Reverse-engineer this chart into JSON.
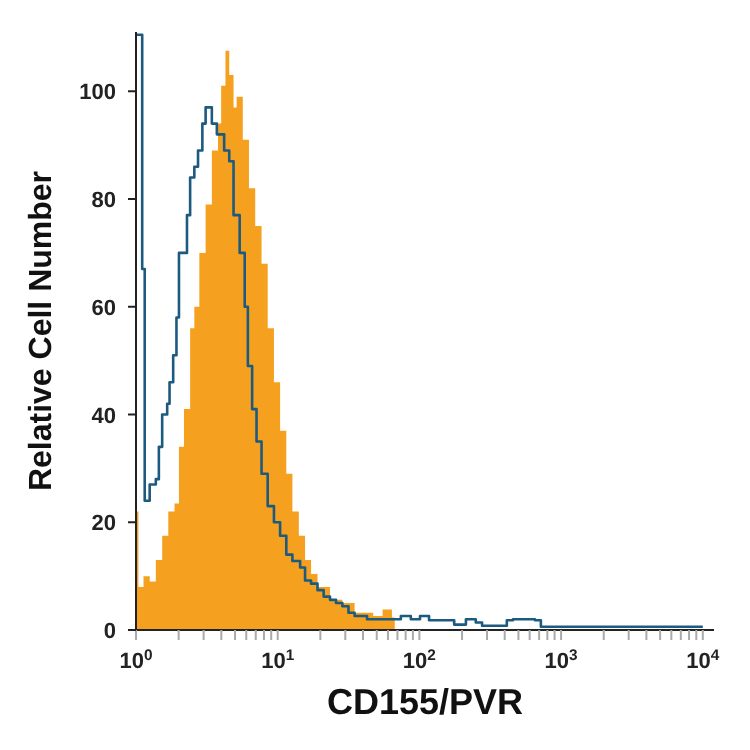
{
  "chart_data": {
    "type": "step",
    "xlabel": "CD155/PVR",
    "ylabel": "Relative Cell Number",
    "log": "x",
    "marker": "none",
    "xlim": [
      1,
      12000
    ],
    "ylim": [
      0,
      111
    ],
    "xticks": [
      {
        "value": 1,
        "label": "10$^{0}$"
      },
      {
        "value": 2,
        "label": null
      },
      {
        "value": 3,
        "label": null
      },
      {
        "value": 4,
        "label": null
      },
      {
        "value": 5,
        "label": null
      },
      {
        "value": 6,
        "label": null
      },
      {
        "value": 7,
        "label": null
      },
      {
        "value": 8,
        "label": null
      },
      {
        "value": 9,
        "label": null
      },
      {
        "value": 10,
        "label": "10$^{1}$"
      },
      {
        "value": 20,
        "label": null
      },
      {
        "value": 30,
        "label": null
      },
      {
        "value": 40,
        "label": null
      },
      {
        "value": 50,
        "label": null
      },
      {
        "value": 60,
        "label": null
      },
      {
        "value": 70,
        "label": null
      },
      {
        "value": 80,
        "label": null
      },
      {
        "value": 90,
        "label": null
      },
      {
        "value": 100,
        "label": "10$^{2}$"
      },
      {
        "value": 200,
        "label": null
      },
      {
        "value": 300,
        "label": null
      },
      {
        "value": 400,
        "label": null
      },
      {
        "value": 500,
        "label": null
      },
      {
        "value": 600,
        "label": null
      },
      {
        "value": 700,
        "label": null
      },
      {
        "value": 800,
        "label": null
      },
      {
        "value": 900,
        "label": null
      },
      {
        "value": 1000,
        "label": "10$^{3}$"
      },
      {
        "value": 2000,
        "label": null
      },
      {
        "value": 3000,
        "label": null
      },
      {
        "value": 4000,
        "label": null
      },
      {
        "value": 5000,
        "label": null
      },
      {
        "value": 6000,
        "label": null
      },
      {
        "value": 7000,
        "label": null
      },
      {
        "value": 8000,
        "label": null
      },
      {
        "value": 9000,
        "label": null
      },
      {
        "value": 10000,
        "label": "10$^{4}$"
      }
    ],
    "yticks": [
      0,
      20,
      40,
      60,
      80,
      100
    ],
    "series": [
      {
        "type": "area",
        "color": "#f5a11f",
        "x": [
          1,
          1.04,
          1.13,
          1.25,
          1.38,
          1.53,
          1.69,
          1.87,
          2.01,
          2.18,
          2.41,
          2.58,
          2.8,
          3.1,
          3.43,
          3.79,
          3.99,
          4.28,
          4.55,
          4.88,
          5.13,
          5.67,
          6.27,
          6.94,
          7.69,
          8.5,
          9.41,
          10.4,
          11.5,
          12.7,
          14.1,
          15.6,
          17.2,
          19.1,
          23.4,
          28.6,
          34.9,
          47.2,
          55,
          64,
          67
        ],
        "values": [
          22,
          8,
          10,
          9,
          13,
          17.5,
          22,
          23.5,
          34,
          41,
          56,
          60,
          70,
          79,
          89,
          94,
          101,
          107.5,
          103,
          97,
          99,
          91,
          82,
          75,
          68,
          56,
          46,
          37,
          29,
          22,
          17.5,
          13,
          10.4,
          8,
          5.6,
          5,
          3.2,
          2.6,
          3.8,
          2.3,
          0
        ]
      },
      {
        "color": "#1d5a80",
        "x": [
          1,
          1.106,
          1.152,
          1.249,
          1.38,
          1.45,
          1.53,
          1.66,
          1.725,
          1.83,
          1.93,
          2.01,
          2.18,
          2.29,
          2.41,
          2.58,
          2.74,
          2.94,
          3.1,
          3.43,
          3.72,
          4.19,
          4.55,
          4.88,
          5.39,
          5.85,
          6.16,
          6.6,
          7.09,
          7.69,
          8.5,
          9.41,
          10.4,
          11.5,
          12.7,
          14.4,
          15.6,
          17.2,
          19.1,
          21.1,
          23.4,
          25.8,
          28.6,
          31.6,
          34.9,
          42.7,
          64,
          74,
          87,
          101,
          117,
          176,
          213,
          250,
          277,
          414,
          458,
          654,
          720,
          10000
        ],
        "values": [
          110.5,
          67,
          24,
          27,
          28,
          34,
          40,
          42,
          46,
          51,
          58,
          70,
          70,
          77,
          84,
          86,
          89,
          94,
          97,
          94,
          92,
          89,
          87,
          77,
          70,
          60,
          49,
          41,
          35,
          29,
          23,
          20,
          17.5,
          14,
          12.8,
          11.6,
          9.2,
          8.6,
          7.4,
          6.2,
          5.6,
          5,
          4.4,
          3.2,
          2.6,
          2,
          2,
          2.6,
          2,
          2.6,
          1.8,
          1,
          2,
          1.4,
          0.8,
          1.8,
          2,
          1.8,
          0.6,
          0.6
        ]
      }
    ]
  }
}
